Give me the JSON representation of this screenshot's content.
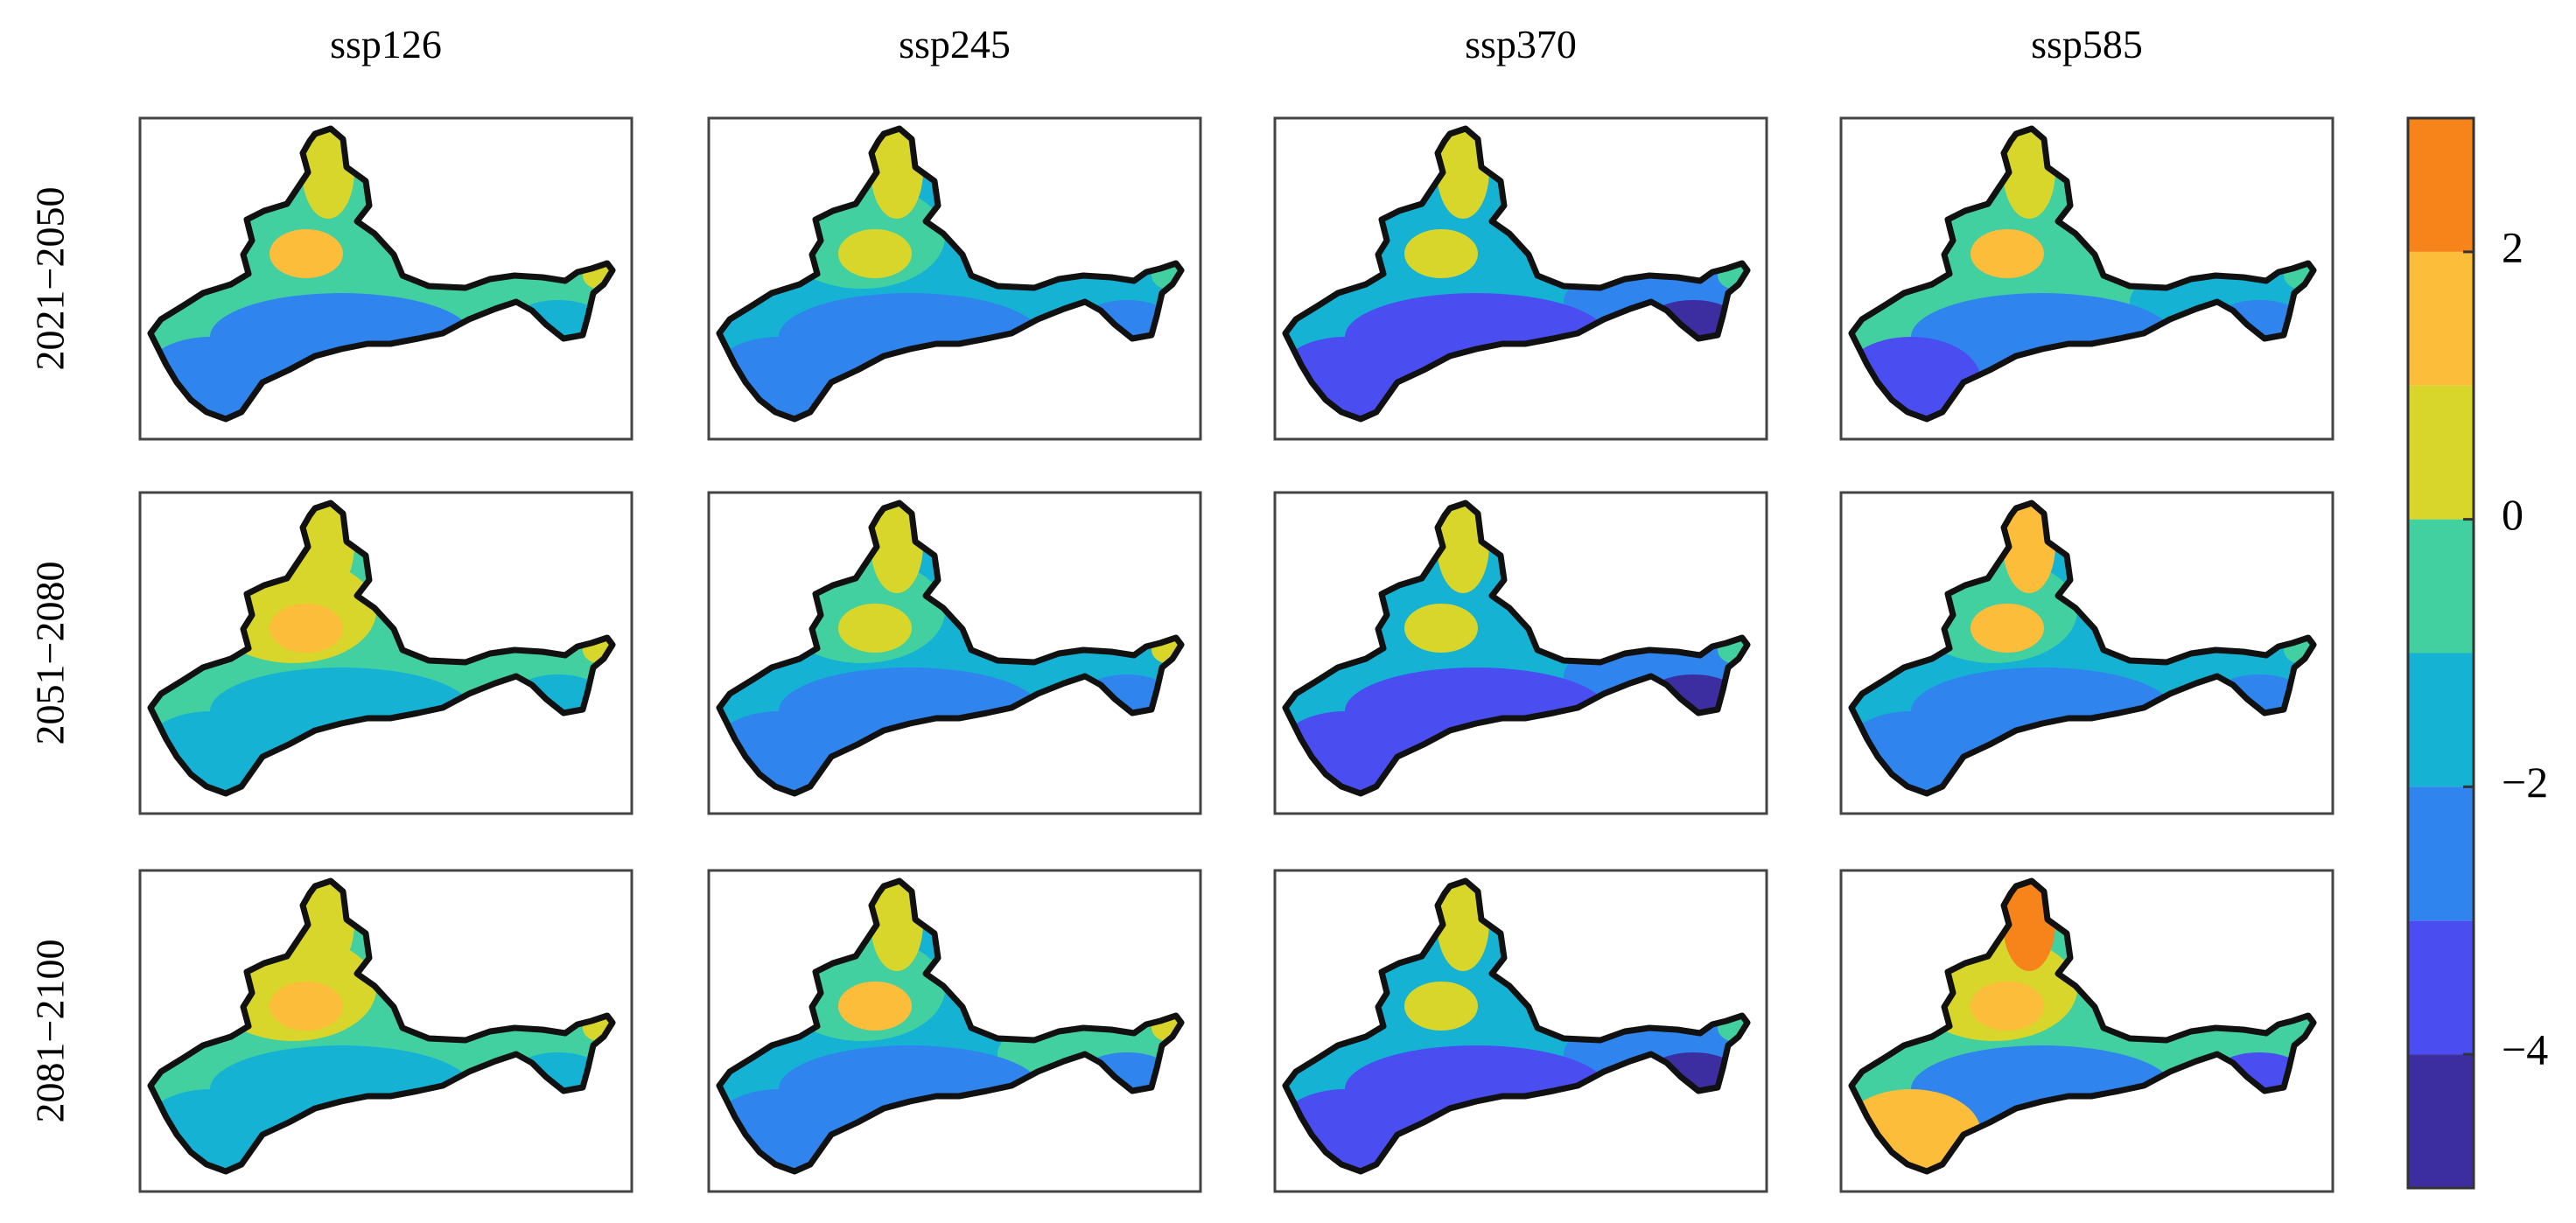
{
  "chart_data": {
    "type": "heatmap",
    "title": "",
    "columns": [
      "ssp126",
      "ssp245",
      "ssp370",
      "ssp585"
    ],
    "rows": [
      "2021−2050",
      "2051−2080",
      "2081−2100"
    ],
    "colorbar": {
      "range": [
        -5,
        3
      ],
      "ticks": [
        2,
        0,
        -2,
        -4
      ],
      "tick_labels": [
        "2",
        "0",
        "−2",
        "−4"
      ],
      "levels": [
        {
          "from": -5,
          "to": -4,
          "color": "#3c2da0"
        },
        {
          "from": -4,
          "to": -3,
          "color": "#4a4ef0"
        },
        {
          "from": -3,
          "to": -2,
          "color": "#2f84ee"
        },
        {
          "from": -2,
          "to": -1,
          "color": "#15b2d4"
        },
        {
          "from": -1,
          "to": 0,
          "color": "#42d0a0"
        },
        {
          "from": 0,
          "to": 1,
          "color": "#d8d62a"
        },
        {
          "from": 1,
          "to": 2,
          "color": "#fcbd3a"
        },
        {
          "from": 2,
          "to": 3,
          "color": "#f7841a"
        }
      ]
    },
    "panels": [
      {
        "row": 0,
        "col": 0,
        "regions": {
          "north_peak": 0.4,
          "center": 1.3,
          "west": -0.5,
          "north_west": -0.3,
          "east_arm": -0.6,
          "east_tip": 0.2,
          "south": -2.2,
          "south_west": -2.6,
          "south_east": -1.8
        }
      },
      {
        "row": 0,
        "col": 1,
        "regions": {
          "north_peak": 0.3,
          "center": 0.8,
          "west": -1.2,
          "north_west": -0.6,
          "east_arm": -1.2,
          "east_tip": -0.3,
          "south": -2.6,
          "south_west": -2.8,
          "south_east": -3.0
        }
      },
      {
        "row": 0,
        "col": 2,
        "regions": {
          "north_peak": 0.2,
          "center": 0.4,
          "west": -1.8,
          "north_west": -1.1,
          "east_arm": -2.2,
          "east_tip": -0.7,
          "south": -3.3,
          "south_west": -3.6,
          "south_east": -4.6
        }
      },
      {
        "row": 0,
        "col": 3,
        "regions": {
          "north_peak": 0.4,
          "center": 1.2,
          "west": -1.0,
          "north_west": -0.6,
          "east_arm": -1.3,
          "east_tip": -0.5,
          "south": -2.7,
          "south_west": -3.1,
          "south_east": -2.6
        }
      },
      {
        "row": 1,
        "col": 0,
        "regions": {
          "north_peak": 0.5,
          "center": 1.4,
          "west": -0.6,
          "north_west": 0.2,
          "east_arm": -0.5,
          "east_tip": 0.3,
          "south": -1.6,
          "south_west": -1.9,
          "south_east": -1.7
        }
      },
      {
        "row": 1,
        "col": 1,
        "regions": {
          "north_peak": 0.4,
          "center": 0.9,
          "west": -1.2,
          "north_west": -0.5,
          "east_arm": -1.2,
          "east_tip": 0.2,
          "south": -2.2,
          "south_west": -2.4,
          "south_east": -2.6
        }
      },
      {
        "row": 1,
        "col": 2,
        "regions": {
          "north_peak": 0.2,
          "center": 0.6,
          "west": -2.0,
          "north_west": -1.3,
          "east_arm": -2.3,
          "east_tip": -0.7,
          "south": -3.1,
          "south_west": -3.7,
          "south_east": -4.3
        }
      },
      {
        "row": 1,
        "col": 3,
        "regions": {
          "north_peak": 1.6,
          "center": 1.3,
          "west": -1.2,
          "north_west": -0.4,
          "east_arm": -1.3,
          "east_tip": -0.3,
          "south": -2.4,
          "south_west": -2.8,
          "south_east": -2.2
        }
      },
      {
        "row": 2,
        "col": 0,
        "regions": {
          "north_peak": 0.6,
          "center": 1.6,
          "west": -0.4,
          "north_west": 0.3,
          "east_arm": -0.3,
          "east_tip": 0.4,
          "south": -1.4,
          "south_west": -1.5,
          "south_east": -1.2
        }
      },
      {
        "row": 2,
        "col": 1,
        "regions": {
          "north_peak": 0.5,
          "center": 1.0,
          "west": -1.2,
          "north_west": -0.2,
          "east_arm": -1.0,
          "east_tip": 0.5,
          "south": -2.3,
          "south_west": -2.5,
          "south_east": -2.6
        }
      },
      {
        "row": 2,
        "col": 2,
        "regions": {
          "north_peak": 0.3,
          "center": 0.8,
          "west": -2.0,
          "north_west": -1.2,
          "east_arm": -2.1,
          "east_tip": -0.6,
          "south": -3.2,
          "south_west": -3.6,
          "south_east": -4.4
        }
      },
      {
        "row": 2,
        "col": 3,
        "regions": {
          "north_peak": 2.4,
          "center": 1.8,
          "west": -0.8,
          "north_west": 0.6,
          "east_arm": -0.8,
          "east_tip": -0.3,
          "south": -2.5,
          "south_west": 1.9,
          "south_east": -3.3
        }
      }
    ]
  }
}
